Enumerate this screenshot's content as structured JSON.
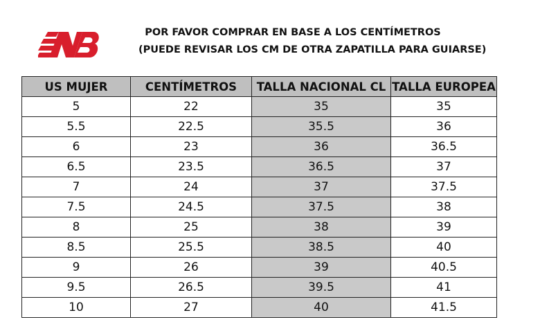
{
  "header": {
    "title_line1": "POR FAVOR COMPRAR EN BASE A LOS CENTÍMETROS",
    "title_line2": "(PUEDE REVISAR LOS CM DE OTRA ZAPATILLA PARA GUIARSE)"
  },
  "table": {
    "columns": [
      "US MUJER",
      "CENTÍMETROS",
      "TALLA NACIONAL CL",
      "TALLA EUROPEA"
    ],
    "rows": [
      [
        "5",
        "22",
        "35",
        "35"
      ],
      [
        "5.5",
        "22.5",
        "35.5",
        "36"
      ],
      [
        "6",
        "23",
        "36",
        "36.5"
      ],
      [
        "6.5",
        "23.5",
        "36.5",
        "37"
      ],
      [
        "7",
        "24",
        "37",
        "37.5"
      ],
      [
        "7.5",
        "24.5",
        "37.5",
        "38"
      ],
      [
        "8",
        "25",
        "38",
        "39"
      ],
      [
        "8.5",
        "25.5",
        "38.5",
        "40"
      ],
      [
        "9",
        "26",
        "39",
        "40.5"
      ],
      [
        "9.5",
        "26.5",
        "39.5",
        "41"
      ],
      [
        "10",
        "27",
        "40",
        "41.5"
      ]
    ]
  }
}
